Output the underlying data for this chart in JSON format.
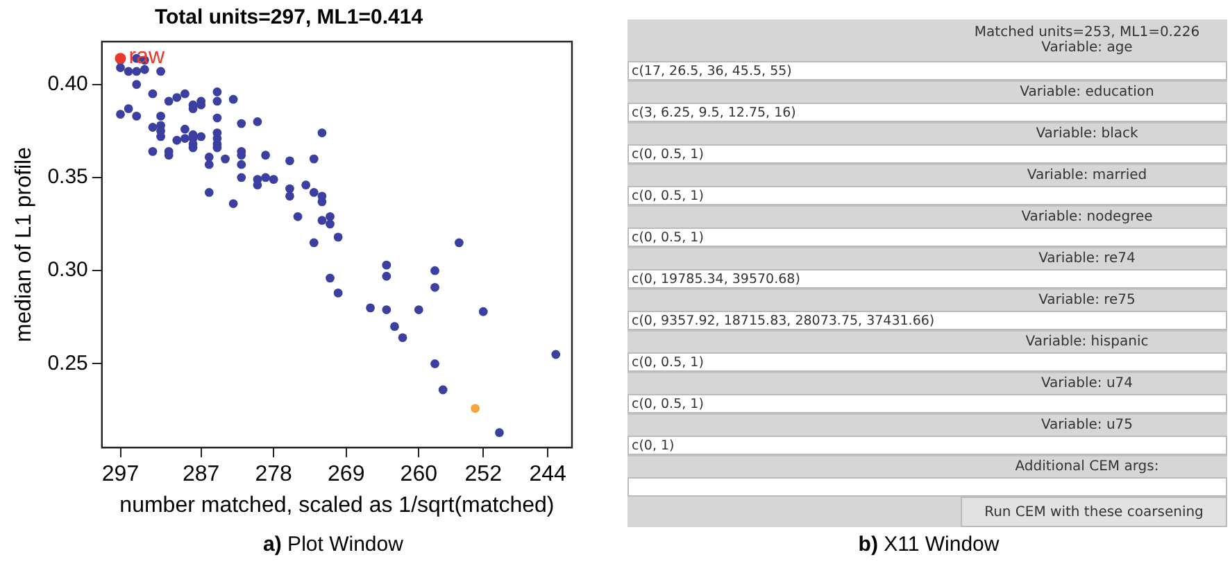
{
  "chart_data": [
    {
      "type": "scatter",
      "title": "Total units=297, ML1=0.414",
      "xlabel": "number matched, scaled as 1/sqrt(matched)",
      "ylabel": "median of L1 profile",
      "xlim": [
        299.3,
        241
      ],
      "xticks": [
        297,
        287,
        278,
        269,
        260,
        252,
        244
      ],
      "ylim": [
        0.205,
        0.423
      ],
      "yticks": [
        0.25,
        {
          "value": 0.3,
          "label": "0.30"
        },
        0.35,
        {
          "value": 0.4,
          "label": "0.40"
        }
      ],
      "grid": false,
      "legend": false,
      "marker": "circle",
      "annotations": [
        "a) Plot Window"
      ],
      "series": [
        {
          "color": "#3b3f9f",
          "x": [
            297,
            295,
            294,
            297,
            296,
            295,
            294,
            292,
            295,
            293,
            291,
            290,
            289,
            288,
            288,
            287,
            287,
            285,
            285,
            283,
            297,
            296,
            295,
            292,
            293,
            292,
            292,
            292,
            289,
            290,
            289,
            288,
            288,
            288,
            288,
            287,
            285,
            285,
            285,
            285,
            285,
            282,
            280,
            293,
            291,
            291,
            286,
            286,
            284,
            282,
            282,
            282,
            279,
            282,
            280,
            280,
            279,
            278,
            276,
            273,
            272,
            276,
            276,
            274,
            273,
            272,
            272,
            286,
            283,
            275,
            272,
            271,
            271,
            270,
            273,
            255,
            264,
            264,
            258,
            258,
            271,
            270,
            266,
            264,
            260,
            252,
            263,
            262,
            258,
            257,
            250,
            243
          ],
          "values": [
            0.413,
            0.414,
            0.413,
            0.409,
            0.407,
            0.407,
            0.408,
            0.407,
            0.4,
            0.395,
            0.391,
            0.393,
            0.395,
            0.389,
            0.387,
            0.391,
            0.389,
            0.396,
            0.391,
            0.392,
            0.384,
            0.387,
            0.383,
            0.383,
            0.377,
            0.378,
            0.375,
            0.372,
            0.376,
            0.37,
            0.371,
            0.373,
            0.371,
            0.368,
            0.366,
            0.372,
            0.382,
            0.374,
            0.371,
            0.368,
            0.366,
            0.379,
            0.38,
            0.364,
            0.364,
            0.362,
            0.361,
            0.357,
            0.36,
            0.364,
            0.362,
            0.357,
            0.362,
            0.35,
            0.349,
            0.346,
            0.35,
            0.349,
            0.359,
            0.36,
            0.374,
            0.344,
            0.34,
            0.346,
            0.342,
            0.34,
            0.337,
            0.342,
            0.336,
            0.329,
            0.327,
            0.329,
            0.325,
            0.318,
            0.315,
            0.315,
            0.303,
            0.297,
            0.3,
            0.291,
            0.296,
            0.288,
            0.28,
            0.279,
            0.279,
            0.278,
            0.27,
            0.264,
            0.25,
            0.236,
            0.213,
            0.255
          ]
        },
        {
          "name": "raw",
          "color": "#e8392d",
          "x": [
            297
          ],
          "values": [
            0.414
          ]
        },
        {
          "color": "#f2a53a",
          "x": [
            253
          ],
          "values": [
            0.226
          ]
        }
      ]
    },
    {
      "type": "other",
      "annotations": [
        "Matched units=253, ML1=0.226",
        "Variable: age",
        "c(17, 26.5, 36, 45.5, 55)",
        "Variable: education",
        "c(3, 6.25, 9.5, 12.75, 16)",
        "Variable: black",
        "c(0, 0.5, 1)",
        "Variable: married",
        "c(0, 0.5, 1)",
        "Variable: nodegree",
        "c(0, 0.5, 1)",
        "Variable: re74",
        "c(0, 19785.34, 39570.68)",
        "Variable: re75",
        "c(0, 9357.92, 18715.83, 28073.75, 37431.66)",
        "Variable: hispanic",
        "c(0, 0.5, 1)",
        "Variable: u74",
        "c(0, 0.5, 1)",
        "Variable: u75",
        "c(0, 1)",
        "Additional CEM args:",
        "Run CEM with these coarsening",
        "b) X11 Window"
      ]
    }
  ]
}
